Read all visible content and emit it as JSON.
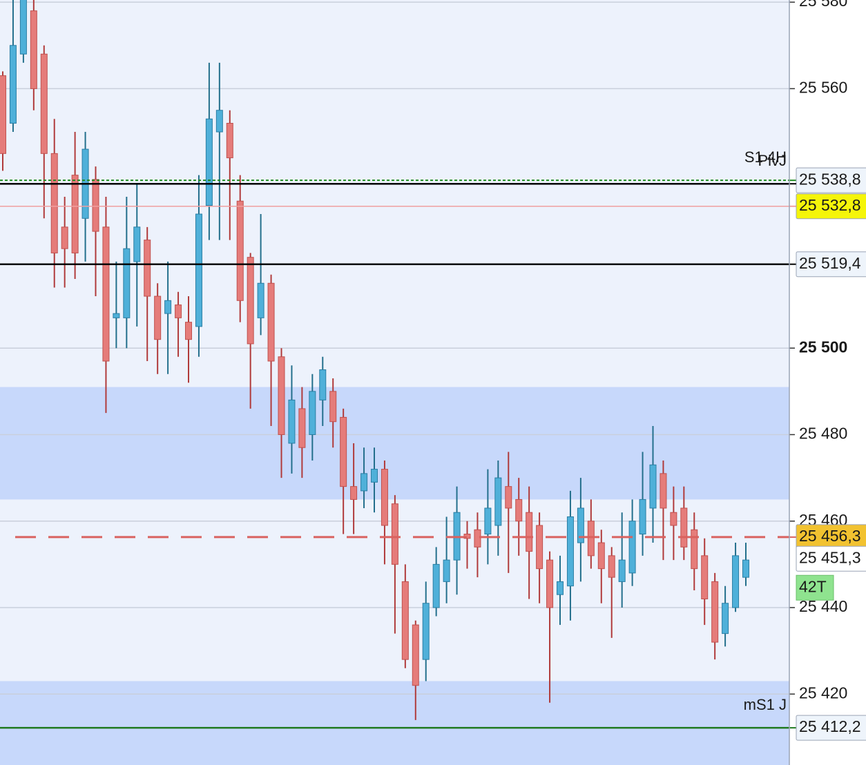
{
  "chart_data": {
    "type": "candlestick",
    "ylim": [
      25403.6,
      25580.5
    ],
    "yticks": [
      {
        "value": 25580,
        "label": "25 580"
      },
      {
        "value": 25560,
        "label": "25 560"
      },
      {
        "value": 25500,
        "label": "25 500"
      },
      {
        "value": 25480,
        "label": "25 480"
      },
      {
        "value": 25460,
        "label": "25 460"
      },
      {
        "value": 25440,
        "label": "25 440"
      },
      {
        "value": 25420,
        "label": "25 420"
      }
    ],
    "bold_tick": 25500,
    "grid": true,
    "background": "#edf2fc",
    "up_color": "#4fb0d9",
    "down_color": "#e57c7a",
    "zones": [
      {
        "from": 25465,
        "to": 25491,
        "color": "#c7d8fb"
      },
      {
        "from": 25403.6,
        "to": 25423,
        "color": "#c7d8fb"
      }
    ],
    "open": [
      25563,
      25552,
      25568,
      25578,
      25568,
      25545,
      25528,
      25540,
      25530,
      25539,
      25528,
      25507,
      25507,
      25520,
      25525,
      25512,
      25508,
      25510,
      25506,
      25505,
      25533,
      25550,
      25552,
      25534,
      25521,
      25507,
      25515,
      25498,
      25478,
      25486,
      25480,
      25488,
      25490,
      25484,
      25468,
      25467,
      25469,
      25472,
      25464,
      25446,
      25436,
      25428,
      25440,
      25446,
      25451,
      25457,
      25458,
      25457,
      25459,
      25468,
      25465,
      25462,
      25459,
      25451,
      25443,
      25445,
      25455,
      25460,
      25455,
      25452,
      25446,
      25448,
      25457,
      25463,
      25471,
      25462,
      25463,
      25458,
      25452,
      25446,
      25434,
      25440,
      25447
    ],
    "high": [
      25564,
      25581,
      25581,
      25582,
      25570,
      25553,
      25535,
      25550,
      25550,
      25542,
      25535,
      25520,
      25535,
      25538,
      25528,
      25515,
      25520,
      25513,
      25512,
      25540,
      25566,
      25566,
      25555,
      25540,
      25522,
      25531,
      25517,
      25500,
      25496,
      25491,
      25494,
      25498,
      25493,
      25486,
      25478,
      25477,
      25477,
      25474,
      25466,
      25450,
      25437,
      25446,
      25454,
      25461,
      25468,
      25460,
      25462,
      25472,
      25474,
      25476,
      25470,
      25468,
      25462,
      25453,
      25452,
      25467,
      25470,
      25465,
      25458,
      25454,
      25462,
      25465,
      25476,
      25482,
      25474,
      25468,
      25468,
      25462,
      25456,
      25448,
      25445,
      25455,
      25455
    ],
    "low": [
      25541,
      25550,
      25566,
      25555,
      25530,
      25514,
      25514,
      25516,
      25520,
      25512,
      25485,
      25500,
      25500,
      25505,
      25497,
      25494,
      25494,
      25498,
      25492,
      25498,
      25525,
      25525,
      25525,
      25506,
      25486,
      25503,
      25482,
      25470,
      25471,
      25470,
      25474,
      25482,
      25477,
      25457,
      25457,
      25463,
      25462,
      25450,
      25434,
      25426,
      25414,
      25423,
      25438,
      25441,
      25443,
      25449,
      25447,
      25450,
      25452,
      25448,
      25452,
      25442,
      25441,
      25418,
      25436,
      25437,
      25446,
      25449,
      25441,
      25433,
      25440,
      25445,
      25452,
      25455,
      25451,
      25451,
      25451,
      25444,
      25436,
      25428,
      25431,
      25439,
      25445
    ],
    "close": [
      25545,
      25570,
      25582,
      25560,
      25545,
      25522,
      25523,
      25522,
      25546,
      25527,
      25497,
      25508,
      25523,
      25528,
      25512,
      25502,
      25511,
      25507,
      25502,
      25531,
      25553,
      25555,
      25544,
      25511,
      25501,
      25515,
      25497,
      25480,
      25488,
      25477,
      25490,
      25495,
      25483,
      25468,
      25465,
      25471,
      25472,
      25459,
      25450,
      25428,
      25422,
      25441,
      25450,
      25451,
      25462,
      25456,
      25454,
      25463,
      25470,
      25463,
      25460,
      25453,
      25449,
      25440,
      25446,
      25461,
      25463,
      25452,
      25449,
      25447,
      25451,
      25460,
      25465,
      25473,
      25463,
      25459,
      25454,
      25449,
      25442,
      25432,
      25441,
      25452,
      25451
    ],
    "levels": [
      {
        "value": 25538.8,
        "color": "#1f8a1f",
        "style": "dotted",
        "name": "S1 4H",
        "tag": "25 538,8",
        "tag_bg": "#eef4fb",
        "tag_color": "#1f8a1f"
      },
      {
        "value": 25538,
        "color": "#000000",
        "style": "solid",
        "name": "PivJ"
      },
      {
        "value": 25532.8,
        "color": "#f0a0a0",
        "style": "solid",
        "tag": "25 532,8",
        "tag_bg": "#f5f50a",
        "tag_color": "#1a1a1a"
      },
      {
        "value": 25519.4,
        "color": "#000000",
        "style": "solid",
        "tag": "25 519,4",
        "tag_bg": "#eef4fb",
        "tag_color": "#1a1a1a"
      },
      {
        "value": 25456.3,
        "color": "#d9625f",
        "style": "dashed",
        "tag": "25 456,3",
        "tag_bg": "#f2c230",
        "tag_color": "#1a1a1a"
      },
      {
        "value": 25451.3,
        "tag": "25 451,3",
        "tag_bg": "#ffffff",
        "tag_color": "#1a1a1a"
      },
      {
        "value": 25412.2,
        "color": "#1f7a1f",
        "style": "solid",
        "name": "mS1 J",
        "tag": "25 412,2",
        "tag_bg": "#eef4fb",
        "tag_color": "#1f8a1f"
      }
    ],
    "timer": "42T"
  }
}
